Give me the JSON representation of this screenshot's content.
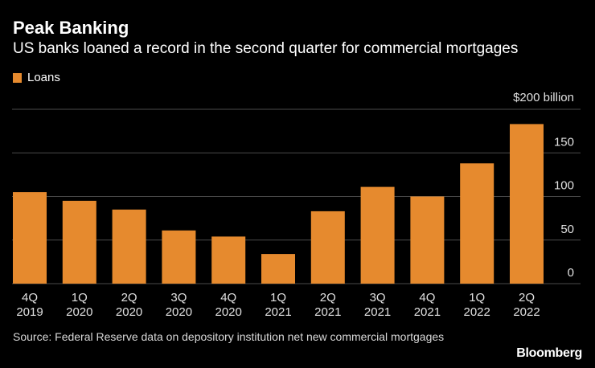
{
  "chart_data": {
    "type": "bar",
    "title": "Peak Banking",
    "subtitle": "US banks loaned a record in the second quarter for commercial mortgages",
    "categories": [
      [
        "4Q",
        "2019"
      ],
      [
        "1Q",
        "2020"
      ],
      [
        "2Q",
        "2020"
      ],
      [
        "3Q",
        "2020"
      ],
      [
        "4Q",
        "2020"
      ],
      [
        "1Q",
        "2021"
      ],
      [
        "2Q",
        "2021"
      ],
      [
        "3Q",
        "2021"
      ],
      [
        "4Q",
        "2021"
      ],
      [
        "1Q",
        "2022"
      ],
      [
        "2Q",
        "2022"
      ]
    ],
    "series": [
      {
        "name": "Loans",
        "values": [
          105,
          95,
          85,
          61,
          54,
          34,
          83,
          111,
          100,
          138,
          183
        ]
      }
    ],
    "ylim": [
      0,
      200
    ],
    "yticks": [
      0,
      50,
      100,
      150
    ],
    "top_tick_label": "$200 billion",
    "xlabel": "",
    "ylabel": "",
    "grid": true,
    "legend_position": "top-left"
  },
  "colors": {
    "bar": "#e68a2e",
    "grid": "#4a4a4a",
    "background": "#000000"
  },
  "footer": {
    "source": "Source: Federal Reserve data on depository institution net new commercial mortgages",
    "brand": "Bloomberg"
  }
}
